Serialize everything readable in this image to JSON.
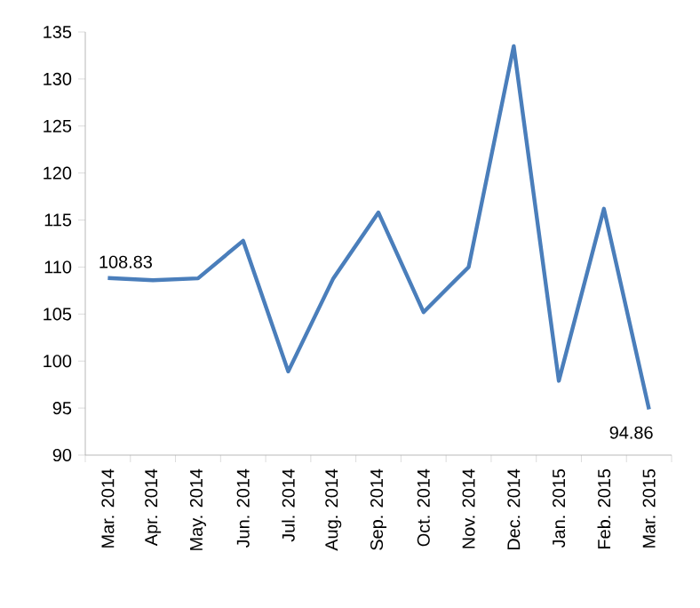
{
  "chart_data": {
    "type": "line",
    "categories": [
      "Mar. 2014",
      "Apr. 2014",
      "May. 2014",
      "Jun. 2014",
      "Jul. 2014",
      "Aug. 2014",
      "Sep. 2014",
      "Oct. 2014",
      "Nov. 2014",
      "Dec. 2014",
      "Jan. 2015",
      "Feb. 2015",
      "Mar. 2015"
    ],
    "series": [
      {
        "color": "#4a7ebb",
        "values": [
          108.83,
          108.6,
          108.8,
          112.8,
          98.9,
          108.8,
          115.8,
          105.2,
          110.0,
          133.5,
          97.9,
          116.2,
          94.86
        ],
        "value_labels": [
          "108.83",
          null,
          null,
          null,
          null,
          null,
          null,
          null,
          null,
          null,
          null,
          null,
          "94.86"
        ]
      }
    ],
    "ylim": [
      90,
      135
    ],
    "yticks": [
      90,
      95,
      100,
      105,
      110,
      115,
      120,
      125,
      130,
      135
    ],
    "marker": "none",
    "line_style": "solid"
  }
}
